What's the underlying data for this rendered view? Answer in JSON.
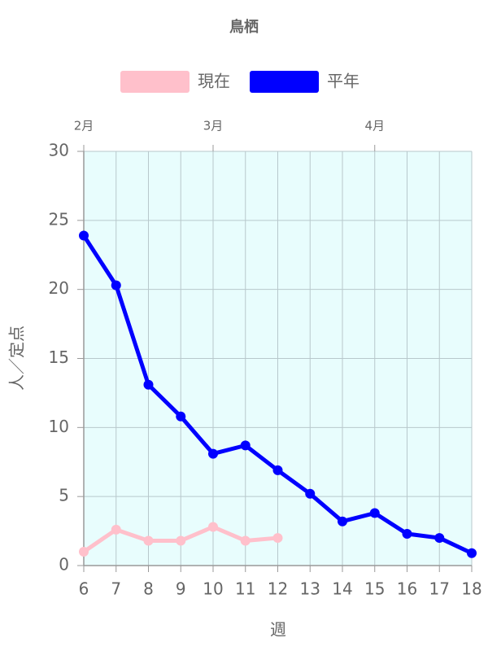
{
  "chart_data": {
    "type": "line",
    "title": "鳥栖",
    "x": [
      6,
      7,
      8,
      9,
      10,
      11,
      12,
      13,
      14,
      15,
      16,
      17,
      18
    ],
    "series": [
      {
        "name": "現在",
        "color": "#ffc0cb",
        "values": [
          1.0,
          2.6,
          1.8,
          1.8,
          2.8,
          1.8,
          2.0,
          null,
          null,
          null,
          null,
          null,
          null
        ]
      },
      {
        "name": "平年",
        "color": "#0000ff",
        "values": [
          23.9,
          20.3,
          13.1,
          10.8,
          8.1,
          8.7,
          6.9,
          5.2,
          3.2,
          3.8,
          2.3,
          2.0,
          0.9
        ]
      }
    ],
    "xlim": [
      6,
      18
    ],
    "xticks": [
      6,
      7,
      8,
      9,
      10,
      11,
      12,
      13,
      14,
      15,
      16,
      17,
      18
    ],
    "ylim": [
      0,
      30
    ],
    "yticks": [
      0,
      5,
      10,
      15,
      20,
      25,
      30
    ],
    "x2ticks": [
      {
        "value": 6,
        "label": "2月"
      },
      {
        "value": 10,
        "label": "3月"
      },
      {
        "value": 15,
        "label": "4月"
      }
    ],
    "xlabel": "週",
    "ylabel": "人／定点",
    "grid": true,
    "plot_background": "#e8fdfd"
  }
}
